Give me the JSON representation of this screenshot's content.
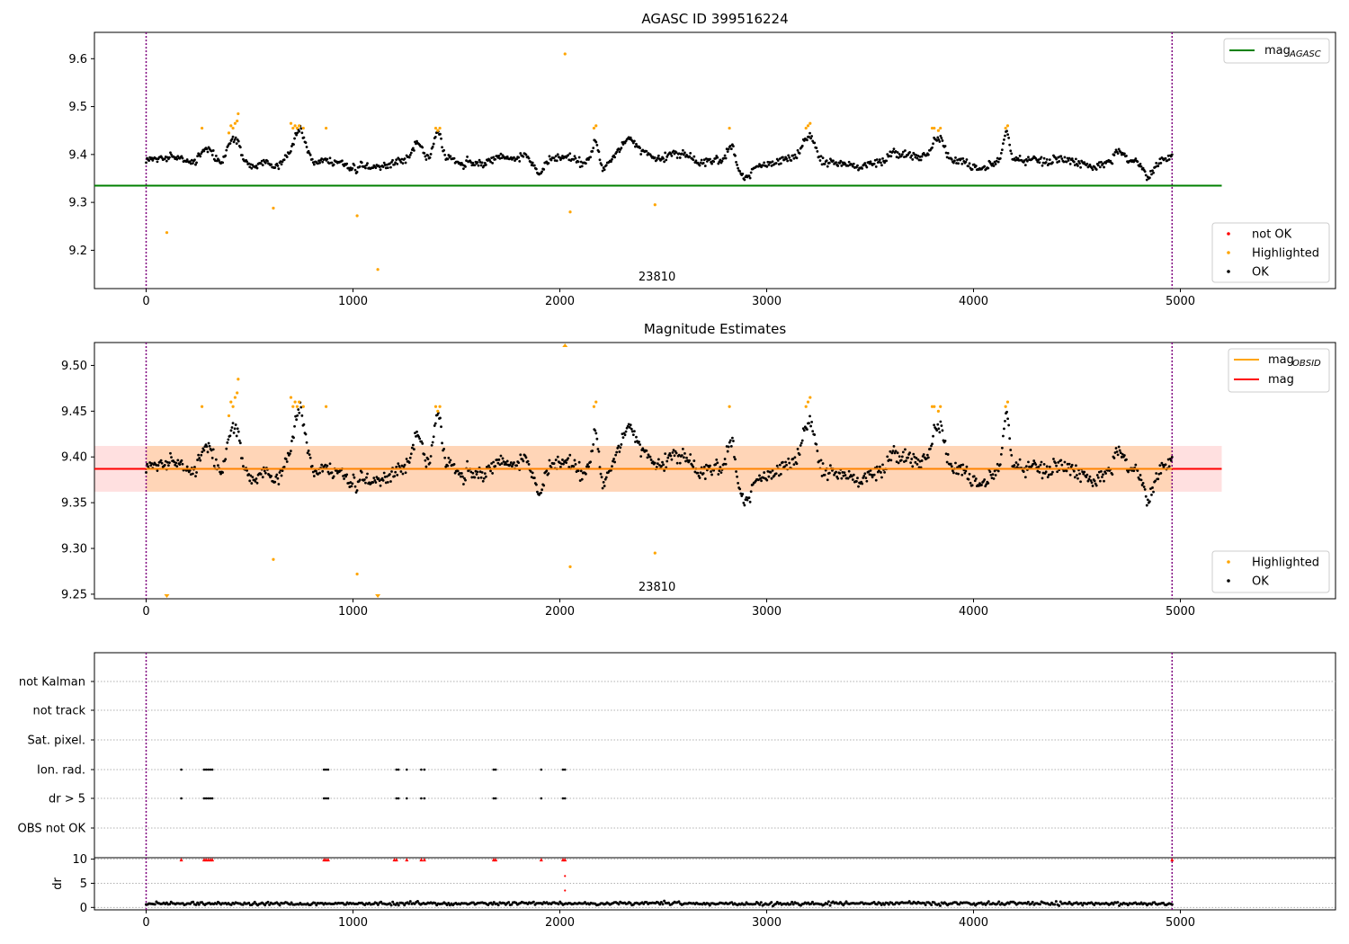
{
  "chart_data": [
    {
      "type": "scatter",
      "title": "AGASC ID 399516224",
      "xlim": [
        -250,
        5750
      ],
      "ylim": [
        9.12,
        9.655
      ],
      "x_ticks": [
        0,
        1000,
        2000,
        3000,
        4000,
        5000
      ],
      "y_ticks": [
        9.2,
        9.3,
        9.4,
        9.5,
        9.6
      ],
      "y_tick_labels": [
        "9.2",
        "9.3",
        "9.4",
        "9.5",
        "9.6"
      ],
      "vlines": [
        0,
        4960
      ],
      "obsid_label": "23810",
      "obsid_label_x": 2470,
      "mag_agasc": 9.335,
      "mag_agasc_xrange": [
        -250,
        5200
      ],
      "ok_series": {
        "name": "OK",
        "color": "#000000",
        "x_range": [
          0,
          4960
        ],
        "n": 1100,
        "base": 9.385,
        "noise": 0.012,
        "seed": 7,
        "bumps": [
          [
            290,
            40,
            0.03
          ],
          [
            420,
            40,
            0.06
          ],
          [
            740,
            40,
            0.055
          ],
          [
            1310,
            30,
            0.04
          ],
          [
            1410,
            25,
            0.06
          ],
          [
            2170,
            20,
            0.04
          ],
          [
            2330,
            60,
            0.045
          ],
          [
            2830,
            25,
            0.04
          ],
          [
            3200,
            40,
            0.05
          ],
          [
            3830,
            40,
            0.05
          ],
          [
            4160,
            20,
            0.06
          ],
          [
            4700,
            40,
            0.025
          ],
          [
            4850,
            30,
            -0.03
          ],
          [
            2900,
            60,
            -0.03
          ],
          [
            1900,
            30,
            -0.035
          ]
        ]
      },
      "highlighted": {
        "name": "Highlighted",
        "color": "#ffa500",
        "points": [
          [
            100,
            9.237
          ],
          [
            615,
            9.288
          ],
          [
            1020,
            9.272
          ],
          [
            1120,
            9.16
          ],
          [
            2025,
            9.61
          ],
          [
            2050,
            9.28
          ],
          [
            2460,
            9.295
          ],
          [
            270,
            9.455
          ],
          [
            400,
            9.445
          ],
          [
            410,
            9.46
          ],
          [
            420,
            9.455
          ],
          [
            430,
            9.465
          ],
          [
            440,
            9.47
          ],
          [
            445,
            9.485
          ],
          [
            700,
            9.465
          ],
          [
            710,
            9.455
          ],
          [
            720,
            9.46
          ],
          [
            730,
            9.455
          ],
          [
            740,
            9.46
          ],
          [
            760,
            9.455
          ],
          [
            870,
            9.455
          ],
          [
            1400,
            9.455
          ],
          [
            1410,
            9.45
          ],
          [
            1420,
            9.455
          ],
          [
            2165,
            9.455
          ],
          [
            2175,
            9.46
          ],
          [
            2820,
            9.455
          ],
          [
            3190,
            9.455
          ],
          [
            3200,
            9.46
          ],
          [
            3210,
            9.465
          ],
          [
            3800,
            9.455
          ],
          [
            3810,
            9.455
          ],
          [
            3830,
            9.45
          ],
          [
            3840,
            9.455
          ],
          [
            4155,
            9.455
          ],
          [
            4165,
            9.46
          ]
        ]
      },
      "legend_lines": [
        {
          "label": "mag",
          "sub": "AGASC",
          "color": "#008000"
        }
      ],
      "legend_points": [
        {
          "label": "not OK",
          "color": "#ff0000"
        },
        {
          "label": "Highlighted",
          "color": "#ffa500"
        },
        {
          "label": "OK",
          "color": "#000000"
        }
      ]
    },
    {
      "type": "scatter",
      "title": "Magnitude Estimates",
      "xlim": [
        -250,
        5750
      ],
      "ylim": [
        9.245,
        9.525
      ],
      "x_ticks": [
        0,
        1000,
        2000,
        3000,
        4000,
        5000
      ],
      "y_ticks": [
        9.25,
        9.3,
        9.35,
        9.4,
        9.45,
        9.5
      ],
      "y_tick_labels": [
        "9.25",
        "9.30",
        "9.35",
        "9.40",
        "9.45",
        "9.50"
      ],
      "vlines": [
        0,
        4960
      ],
      "obsid_label": "23810",
      "obsid_label_x": 2470,
      "mag": 9.387,
      "mag_obsid": 9.387,
      "band": [
        9.362,
        9.412
      ],
      "band_xrange": [
        -250,
        5200
      ],
      "legend_lines": [
        {
          "label": "mag",
          "sub": "OBSID",
          "color": "#ffa500"
        },
        {
          "label": "mag",
          "sub": "",
          "color": "#ff0000"
        }
      ],
      "legend_points": [
        {
          "label": "Highlighted",
          "color": "#ffa500"
        },
        {
          "label": "OK",
          "color": "#000000"
        }
      ],
      "clipped_markers": [
        [
          100,
          "bottom"
        ],
        [
          1120,
          "bottom"
        ],
        [
          2025,
          "top"
        ]
      ]
    },
    {
      "type": "scatter",
      "xlim": [
        -250,
        5750
      ],
      "flag_rows": [
        "not Kalman",
        "not track",
        "Sat. pixel.",
        "Ion. rad.",
        "dr > 5",
        "OBS not OK"
      ],
      "flag_positions": [
        [],
        [],
        [],
        [
          170,
          280,
          290,
          300,
          310,
          320,
          860,
          870,
          880,
          1210,
          1220,
          1260,
          1330,
          1345,
          1680,
          1690,
          1910,
          2015,
          2025
        ],
        [
          170,
          280,
          290,
          300,
          310,
          320,
          860,
          870,
          880,
          1210,
          1220,
          1260,
          1330,
          1345,
          1680,
          1690,
          1910,
          2015,
          2025
        ],
        []
      ],
      "vlines": [
        0,
        4960
      ]
    },
    {
      "type": "scatter",
      "ylabel": "dr",
      "xlim": [
        -250,
        5750
      ],
      "ylim": [
        -0.5,
        10.3
      ],
      "x_ticks": [
        0,
        1000,
        2000,
        3000,
        4000,
        5000
      ],
      "y_ticks": [
        0,
        5,
        10
      ],
      "dr_base": 0.8,
      "dr_noise": 0.35,
      "red_markers_x": [
        170,
        280,
        290,
        300,
        310,
        320,
        860,
        870,
        880,
        1200,
        1210,
        1260,
        1330,
        1345,
        1680,
        1690,
        1910,
        2015,
        2025,
        4960
      ],
      "red_markers_y": 9.9,
      "red_extra": [
        [
          2025,
          6.5
        ],
        [
          2025,
          3.5
        ]
      ],
      "vlines": [
        0,
        4960
      ]
    }
  ]
}
